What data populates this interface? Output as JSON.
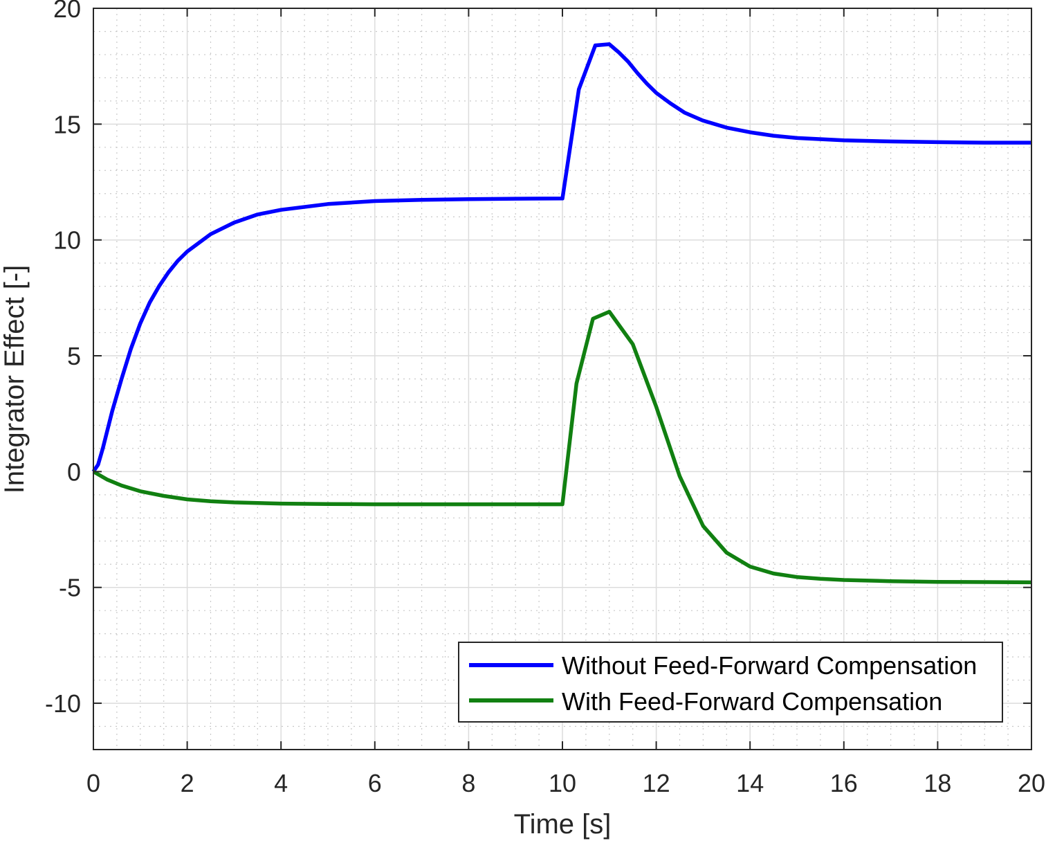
{
  "chart_data": {
    "type": "line",
    "title": "",
    "xlabel": "Time [s]",
    "ylabel": "Integrator Effect [-]",
    "xlim": [
      0,
      20
    ],
    "ylim": [
      -12,
      20
    ],
    "xticks": [
      0,
      2,
      4,
      6,
      8,
      10,
      12,
      14,
      16,
      18,
      20
    ],
    "yticks": [
      -10,
      -5,
      0,
      5,
      10,
      15,
      20
    ],
    "xtick_labels": [
      "0",
      "2",
      "4",
      "6",
      "8",
      "10",
      "12",
      "14",
      "16",
      "18",
      "20"
    ],
    "ytick_labels": [
      "-10",
      "-5",
      "0",
      "5",
      "10",
      "15",
      "20"
    ],
    "grid": true,
    "minor_grid": true,
    "legend_position": "bottom-right",
    "series": [
      {
        "name": "Without Feed-Forward Compensation",
        "color": "#0000ff",
        "x": [
          0,
          0.1,
          0.2,
          0.4,
          0.6,
          0.8,
          1.0,
          1.2,
          1.4,
          1.6,
          1.8,
          2.0,
          2.5,
          3.0,
          3.5,
          4.0,
          5.0,
          6.0,
          7.0,
          8.0,
          9.0,
          10.0,
          10.35,
          10.7,
          11.0,
          11.2,
          11.4,
          11.6,
          11.8,
          12.0,
          12.3,
          12.6,
          13.0,
          13.5,
          14.0,
          14.5,
          15.0,
          16.0,
          17.0,
          18.0,
          19.0,
          20.0
        ],
        "y": [
          0,
          0.3,
          1.0,
          2.6,
          4.0,
          5.3,
          6.4,
          7.3,
          8.0,
          8.6,
          9.1,
          9.5,
          10.25,
          10.75,
          11.1,
          11.3,
          11.55,
          11.68,
          11.73,
          11.76,
          11.78,
          11.79,
          16.5,
          18.4,
          18.45,
          18.1,
          17.7,
          17.2,
          16.75,
          16.35,
          15.9,
          15.5,
          15.15,
          14.85,
          14.65,
          14.5,
          14.4,
          14.3,
          14.25,
          14.22,
          14.2,
          14.2
        ]
      },
      {
        "name": "With Feed-Forward Compensation",
        "color": "#118011",
        "x": [
          0,
          0.3,
          0.6,
          1.0,
          1.5,
          2.0,
          2.5,
          3.0,
          4.0,
          5.0,
          6.0,
          7.0,
          8.0,
          9.0,
          10.0,
          10.3,
          10.65,
          11.0,
          11.5,
          12.0,
          12.5,
          13.0,
          13.5,
          14.0,
          14.5,
          15.0,
          15.5,
          16.0,
          17.0,
          18.0,
          19.0,
          20.0
        ],
        "y": [
          0,
          -0.35,
          -0.6,
          -0.85,
          -1.05,
          -1.2,
          -1.28,
          -1.33,
          -1.38,
          -1.4,
          -1.41,
          -1.41,
          -1.41,
          -1.41,
          -1.41,
          3.8,
          6.6,
          6.9,
          5.5,
          2.8,
          -0.2,
          -2.35,
          -3.5,
          -4.1,
          -4.4,
          -4.55,
          -4.63,
          -4.68,
          -4.73,
          -4.76,
          -4.77,
          -4.78
        ]
      }
    ]
  }
}
